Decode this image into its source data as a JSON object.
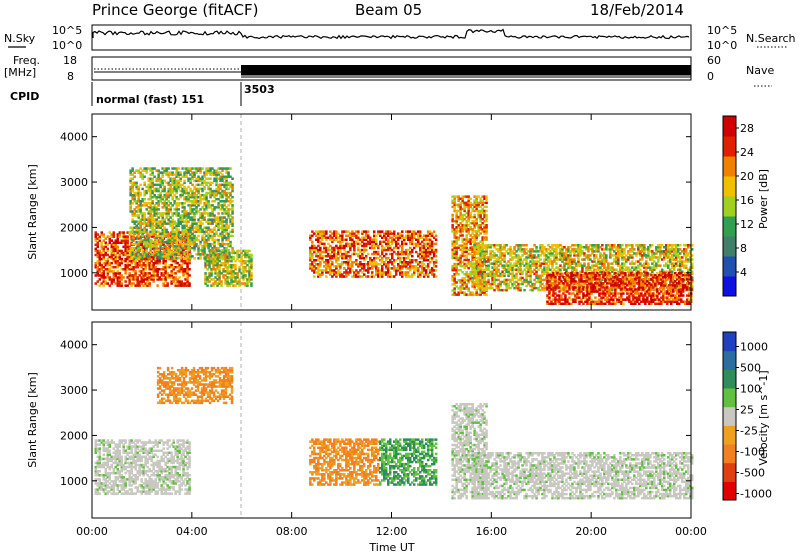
{
  "header": {
    "station": "Prince George (fitACF)",
    "beam": "Beam 05",
    "date": "18/Feb/2014"
  },
  "top_panels": {
    "nsky_label": "N.Sky",
    "nsky_ticks": [
      "10^5",
      "10^0"
    ],
    "nsearch_label": "N.Search",
    "nsearch_ticks": [
      "10^5",
      "10^0"
    ],
    "freq_label_1": "Freq.",
    "freq_label_2": "[MHz]",
    "freq_ticks": [
      "18",
      "8"
    ],
    "nave_label": "Nave",
    "nave_ticks": [
      "60",
      "0"
    ],
    "cpid_label": "CPID",
    "cpid_values": [
      {
        "name": "normal (fast) 151",
        "start_hour": 0,
        "end_hour": 6.0
      },
      {
        "name": "3503",
        "start_hour": 6.0,
        "end_hour": 24
      }
    ]
  },
  "chart_data": [
    {
      "type": "heatmap",
      "title": "",
      "xlabel": "",
      "ylabel": "Slant Range [km]",
      "xlim": [
        0,
        24
      ],
      "ylim": [
        180,
        4500
      ],
      "yticks": [
        1000,
        2000,
        3000,
        4000
      ],
      "colorbar": {
        "label": "Power [dB]",
        "ticks": [
          "4",
          "8",
          "12",
          "16",
          "20",
          "24",
          "28"
        ],
        "range": [
          0,
          30
        ],
        "colors": [
          "#1010e0",
          "#2050b0",
          "#40806a",
          "#30a050",
          "#a0d020",
          "#f0c000",
          "#f08000",
          "#e02000",
          "#d00000"
        ]
      },
      "regions": [
        {
          "x": [
            0.1,
            3.9
          ],
          "y": [
            700,
            1900
          ],
          "level": 0.85,
          "note": "tilted band"
        },
        {
          "x": [
            1.5,
            5.6
          ],
          "y": [
            1300,
            3300
          ],
          "level": 0.5
        },
        {
          "x": [
            4.5,
            6.4
          ],
          "y": [
            700,
            1500
          ],
          "level": 0.55
        },
        {
          "x": [
            8.7,
            13.8
          ],
          "y": [
            900,
            1900
          ],
          "level": 0.8
        },
        {
          "x": [
            14.4,
            15.8
          ],
          "y": [
            500,
            2700
          ],
          "level": 0.7,
          "note": "slanted trace"
        },
        {
          "x": [
            15.2,
            24
          ],
          "y": [
            600,
            1600
          ],
          "level": 0.6
        },
        {
          "x": [
            18.2,
            24
          ],
          "y": [
            300,
            1000
          ],
          "level": 0.9
        }
      ]
    },
    {
      "type": "heatmap",
      "title": "",
      "xlabel": "Time UT",
      "ylabel": "Slant Range [km]",
      "xlim": [
        0,
        24
      ],
      "ylim": [
        180,
        4500
      ],
      "xticks": [
        "00:00",
        "04:00",
        "08:00",
        "12:00",
        "16:00",
        "20:00",
        "00:00"
      ],
      "yticks": [
        1000,
        2000,
        3000,
        4000
      ],
      "colorbar": {
        "label": "Velocity [m s^-1]",
        "ticks": [
          "1000",
          "500",
          "100",
          "25",
          "-25",
          "-100",
          "-500",
          "-1000"
        ],
        "range": [
          -1000,
          1000
        ],
        "colors": [
          "#2040c0",
          "#2d6ea0",
          "#2f8d5a",
          "#60c040",
          "#c8c8c0",
          "#f0a020",
          "#f08020",
          "#e04010",
          "#e00000"
        ]
      },
      "regions": [
        {
          "x": [
            0.1,
            3.9
          ],
          "y": [
            700,
            1900
          ],
          "velocity_class": "ground scatter (grey)"
        },
        {
          "x": [
            2.6,
            5.6
          ],
          "y": [
            2700,
            3500
          ],
          "velocity_class": "-100 to -500 (orange)"
        },
        {
          "x": [
            8.7,
            11.5
          ],
          "y": [
            900,
            1900
          ],
          "velocity_class": "-100 to -500 (orange)"
        },
        {
          "x": [
            11.5,
            13.8
          ],
          "y": [
            900,
            1900
          ],
          "velocity_class": "25 to 100 (green)"
        },
        {
          "x": [
            14.4,
            15.8
          ],
          "y": [
            600,
            2700
          ],
          "velocity_class": "grey / green trace"
        },
        {
          "x": [
            15.2,
            24
          ],
          "y": [
            600,
            1600
          ],
          "velocity_class": "ground scatter (grey)"
        }
      ]
    }
  ]
}
